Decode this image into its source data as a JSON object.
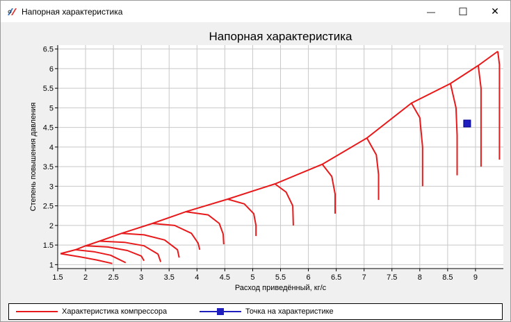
{
  "window": {
    "title": "Напорная характеристика",
    "minimize_glyph": "—",
    "maximize_glyph": "☐",
    "close_glyph": "✕"
  },
  "colors": {
    "curve": "#e8191a",
    "point": "#1f1fbf",
    "grid": "#c8c8c8"
  },
  "chart_data": {
    "type": "line",
    "title": "Напорная характеристика",
    "xlabel": "Расход приведённый, кг/с",
    "ylabel": "Степень повышения давления",
    "xlim": [
      1.5,
      9.5
    ],
    "ylim": [
      0.9,
      6.6
    ],
    "xticks": [
      "1.5",
      "2",
      "2.5",
      "3",
      "3.5",
      "4",
      "4.5",
      "5",
      "5.5",
      "6",
      "6.5",
      "7",
      "7.5",
      "8",
      "8.5",
      "9"
    ],
    "yticks": [
      "1",
      "1.5",
      "2",
      "2.5",
      "3",
      "3.5",
      "4",
      "4.5",
      "5",
      "5.5",
      "6",
      "6.5"
    ],
    "grid": true,
    "legend_position": "bottom",
    "series": [
      {
        "name": "Характеристика компрессора",
        "style": "line",
        "envelope": [
          [
            1.55,
            1.28
          ],
          [
            1.82,
            1.38
          ],
          [
            2.0,
            1.48
          ],
          [
            2.25,
            1.6
          ],
          [
            2.65,
            1.8
          ],
          [
            3.2,
            2.05
          ],
          [
            3.8,
            2.35
          ],
          [
            4.55,
            2.67
          ],
          [
            5.4,
            3.06
          ],
          [
            6.25,
            3.56
          ],
          [
            7.05,
            4.23
          ],
          [
            7.85,
            5.12
          ],
          [
            8.55,
            5.62
          ],
          [
            9.05,
            6.08
          ],
          [
            9.4,
            6.44
          ]
        ],
        "speed_lines": [
          [
            [
              1.55,
              1.28
            ],
            [
              1.9,
              1.2
            ],
            [
              2.2,
              1.12
            ],
            [
              2.48,
              1.03
            ]
          ],
          [
            [
              1.82,
              1.38
            ],
            [
              2.15,
              1.33
            ],
            [
              2.45,
              1.24
            ],
            [
              2.72,
              1.05
            ]
          ],
          [
            [
              2.0,
              1.48
            ],
            [
              2.4,
              1.45
            ],
            [
              2.75,
              1.36
            ],
            [
              3.0,
              1.22
            ],
            [
              3.05,
              1.1
            ]
          ],
          [
            [
              2.25,
              1.6
            ],
            [
              2.7,
              1.57
            ],
            [
              3.05,
              1.48
            ],
            [
              3.3,
              1.27
            ],
            [
              3.35,
              1.07
            ]
          ],
          [
            [
              2.65,
              1.8
            ],
            [
              3.05,
              1.76
            ],
            [
              3.42,
              1.63
            ],
            [
              3.65,
              1.38
            ],
            [
              3.68,
              1.18
            ]
          ],
          [
            [
              3.2,
              2.05
            ],
            [
              3.6,
              2.0
            ],
            [
              3.9,
              1.8
            ],
            [
              4.02,
              1.55
            ],
            [
              4.05,
              1.38
            ]
          ],
          [
            [
              3.8,
              2.35
            ],
            [
              4.2,
              2.27
            ],
            [
              4.4,
              2.05
            ],
            [
              4.47,
              1.78
            ],
            [
              4.48,
              1.52
            ]
          ],
          [
            [
              4.55,
              2.67
            ],
            [
              4.85,
              2.55
            ],
            [
              5.02,
              2.3
            ],
            [
              5.06,
              2.0
            ],
            [
              5.06,
              1.73
            ]
          ],
          [
            [
              5.4,
              3.06
            ],
            [
              5.6,
              2.85
            ],
            [
              5.72,
              2.5
            ],
            [
              5.73,
              2.0
            ]
          ],
          [
            [
              6.25,
              3.56
            ],
            [
              6.42,
              3.25
            ],
            [
              6.48,
              2.8
            ],
            [
              6.48,
              2.3
            ]
          ],
          [
            [
              7.05,
              4.23
            ],
            [
              7.22,
              3.8
            ],
            [
              7.26,
              3.3
            ],
            [
              7.26,
              2.65
            ]
          ],
          [
            [
              7.85,
              5.12
            ],
            [
              8.0,
              4.75
            ],
            [
              8.05,
              4.0
            ],
            [
              8.05,
              3.0
            ]
          ],
          [
            [
              8.55,
              5.62
            ],
            [
              8.65,
              5.0
            ],
            [
              8.67,
              4.3
            ],
            [
              8.67,
              3.28
            ]
          ],
          [
            [
              9.05,
              6.08
            ],
            [
              9.1,
              5.5
            ],
            [
              9.1,
              4.5
            ],
            [
              9.1,
              3.5
            ]
          ],
          [
            [
              9.4,
              6.44
            ],
            [
              9.43,
              6.1
            ],
            [
              9.43,
              5.0
            ],
            [
              9.43,
              3.68
            ]
          ]
        ]
      },
      {
        "name": "Точка на характеристике",
        "style": "marker",
        "points": [
          [
            8.85,
            4.6
          ]
        ]
      }
    ]
  }
}
